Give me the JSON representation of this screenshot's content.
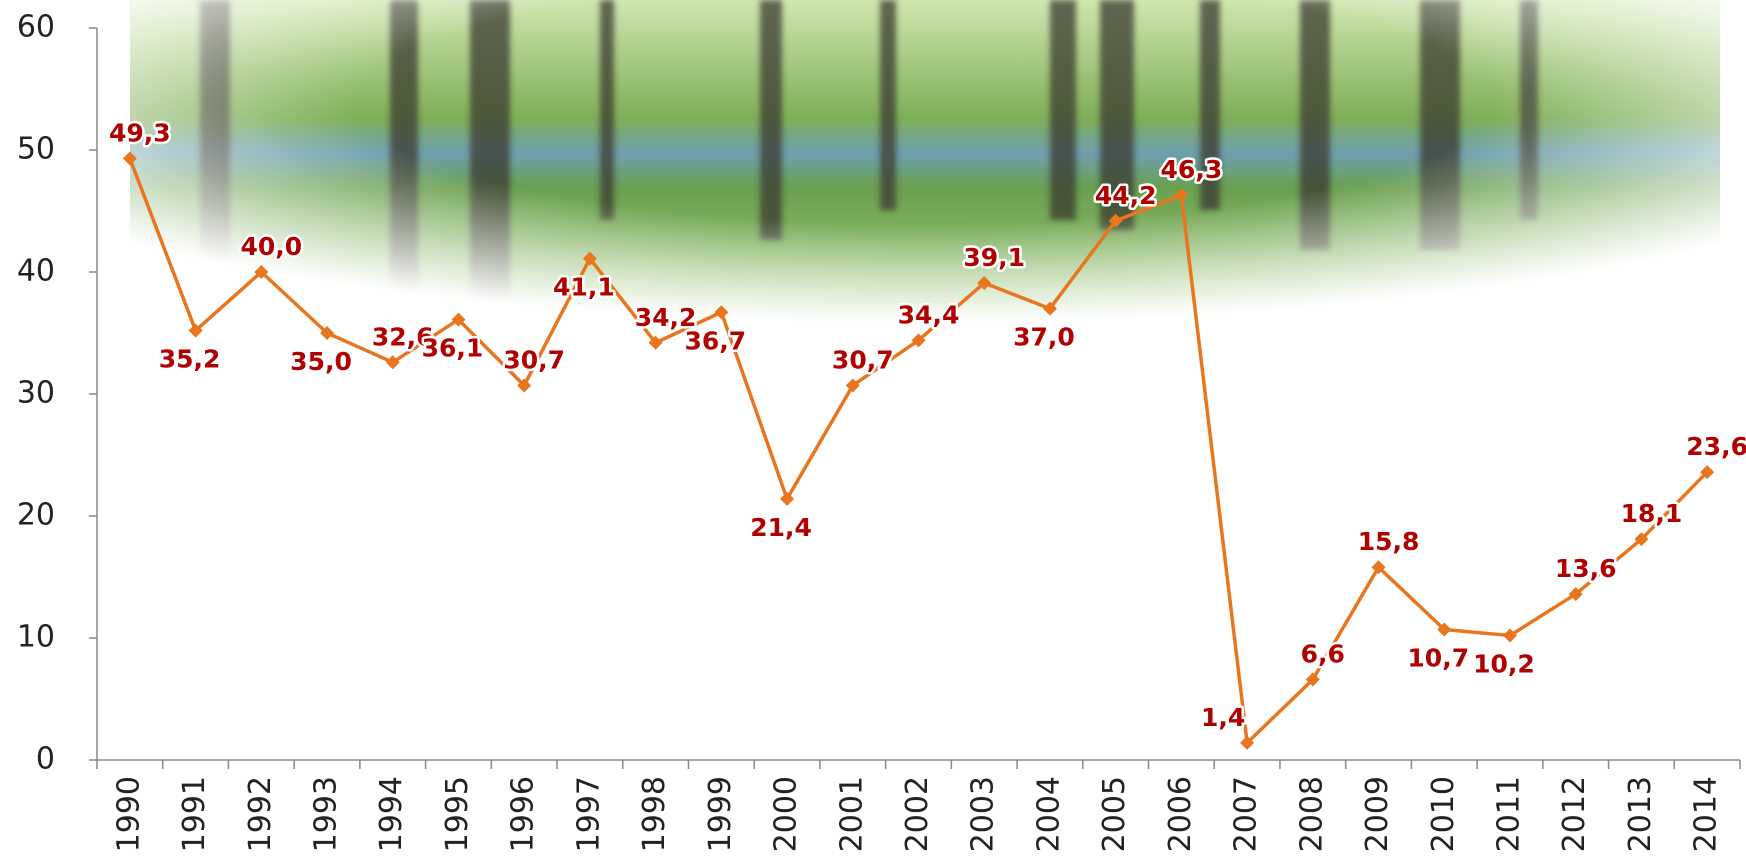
{
  "chart_data": {
    "type": "line",
    "categories": [
      "1990",
      "1991",
      "1992",
      "1993",
      "1994",
      "1995",
      "1996",
      "1997",
      "1998",
      "1999",
      "2000",
      "2001",
      "2002",
      "2003",
      "2004",
      "2005",
      "2006",
      "2007",
      "2008",
      "2009",
      "2010",
      "2011",
      "2012",
      "2013",
      "2014"
    ],
    "series": [
      {
        "color": "#e8761e",
        "values": [
          49.3,
          35.2,
          40.0,
          35.0,
          32.6,
          36.1,
          30.7,
          41.1,
          34.2,
          36.7,
          21.4,
          30.7,
          34.4,
          39.1,
          37.0,
          44.2,
          46.3,
          1.4,
          6.6,
          15.8,
          10.7,
          10.2,
          13.6,
          18.1,
          23.6
        ],
        "value_labels": [
          "49,3",
          "35,2",
          "40,0",
          "35,0",
          "32,6",
          "36,1",
          "30,7",
          "41,1",
          "34,2",
          "36,7",
          "21,4",
          "30,7",
          "34,4",
          "39,1",
          "37,0",
          "44,2",
          "46,3",
          "1,4",
          "6,6",
          "15,8",
          "10,7",
          "10,2",
          "13,6",
          "18,1",
          "23,6"
        ]
      }
    ],
    "ylim": [
      0,
      60
    ],
    "yticks": [
      0,
      10,
      20,
      30,
      40,
      50,
      60
    ],
    "grid": false
  }
}
